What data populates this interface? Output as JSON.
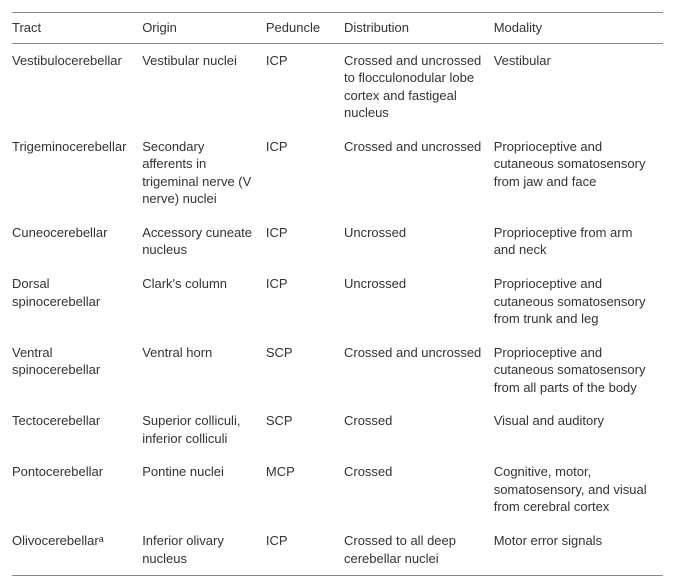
{
  "table": {
    "columns": [
      {
        "key": "tract",
        "label": "Tract",
        "class": "col-tract"
      },
      {
        "key": "origin",
        "label": "Origin",
        "class": "col-origin"
      },
      {
        "key": "peduncle",
        "label": "Peduncle",
        "class": "col-peduncle"
      },
      {
        "key": "distribution",
        "label": "Distribution",
        "class": "col-distribution"
      },
      {
        "key": "modality",
        "label": "Modality",
        "class": "col-modality"
      }
    ],
    "rows": [
      {
        "tract": "Vestibulocerebellar",
        "origin": "Vestibular nuclei",
        "peduncle": "ICP",
        "distribution": "Crossed and uncrossed to flocculonodular lobe cortex and fastigeal nucleus",
        "modality": "Vestibular"
      },
      {
        "tract": "Trigeminocerebellar",
        "origin": "Secondary afferents in trigeminal nerve (V nerve) nuclei",
        "peduncle": "ICP",
        "distribution": "Crossed and uncrossed",
        "modality": "Proprioceptive and cutaneous somatosensory from jaw and face"
      },
      {
        "tract": "Cuneocerebellar",
        "origin": "Accessory cuneate nucleus",
        "peduncle": "ICP",
        "distribution": "Uncrossed",
        "modality": "Proprioceptive from arm and neck"
      },
      {
        "tract": "Dorsal spinocerebellar",
        "origin": "Clark's column",
        "peduncle": "ICP",
        "distribution": "Uncrossed",
        "modality": "Proprioceptive and cutaneous somatosensory from trunk and leg"
      },
      {
        "tract": "Ventral spinocerebellar",
        "origin": "Ventral horn",
        "peduncle": "SCP",
        "distribution": "Crossed and uncrossed",
        "modality": "Proprioceptive and cutaneous somatosensory from all parts of the body"
      },
      {
        "tract": "Tectocerebellar",
        "origin": "Superior colliculi, inferior colliculi",
        "peduncle": "SCP",
        "distribution": "Crossed",
        "modality": "Visual and auditory"
      },
      {
        "tract": "Pontocerebellar",
        "origin": "Pontine nuclei",
        "peduncle": "MCP",
        "distribution": "Crossed",
        "modality": "Cognitive, motor, somatosensory, and visual from cerebral cortex"
      },
      {
        "tract": "Olivocerebellarᵃ",
        "origin": "Inferior olivary nucleus",
        "peduncle": "ICP",
        "distribution": "Crossed to all deep cerebellar nuclei",
        "modality": "Motor error signals"
      }
    ],
    "style": {
      "background_color": "#ffffff",
      "text_color": "#333333",
      "border_color": "#888888",
      "header_font_weight": 400,
      "body_font_weight": 300,
      "font_size_pt": 10,
      "line_height": 1.35,
      "font_family": "Helvetica Neue, Helvetica, Arial, sans-serif"
    }
  }
}
